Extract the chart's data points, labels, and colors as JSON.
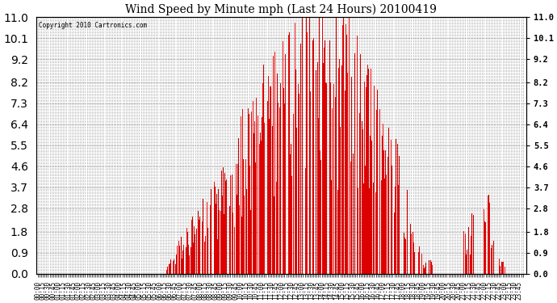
{
  "title": "Wind Speed by Minute mph (Last 24 Hours) 20100419",
  "copyright_text": "Copyright 2010 Cartronics.com",
  "bar_color": "#dd0000",
  "background_color": "#ffffff",
  "grid_color": "#999999",
  "yticks": [
    0.0,
    0.9,
    1.8,
    2.8,
    3.7,
    4.6,
    5.5,
    6.4,
    7.3,
    8.2,
    9.2,
    10.1,
    11.0
  ],
  "ylim": [
    0.0,
    11.0
  ],
  "title_fontsize": 10,
  "total_minutes": 1440,
  "xtick_interval": 15,
  "figsize": [
    6.9,
    3.75
  ],
  "dpi": 100
}
